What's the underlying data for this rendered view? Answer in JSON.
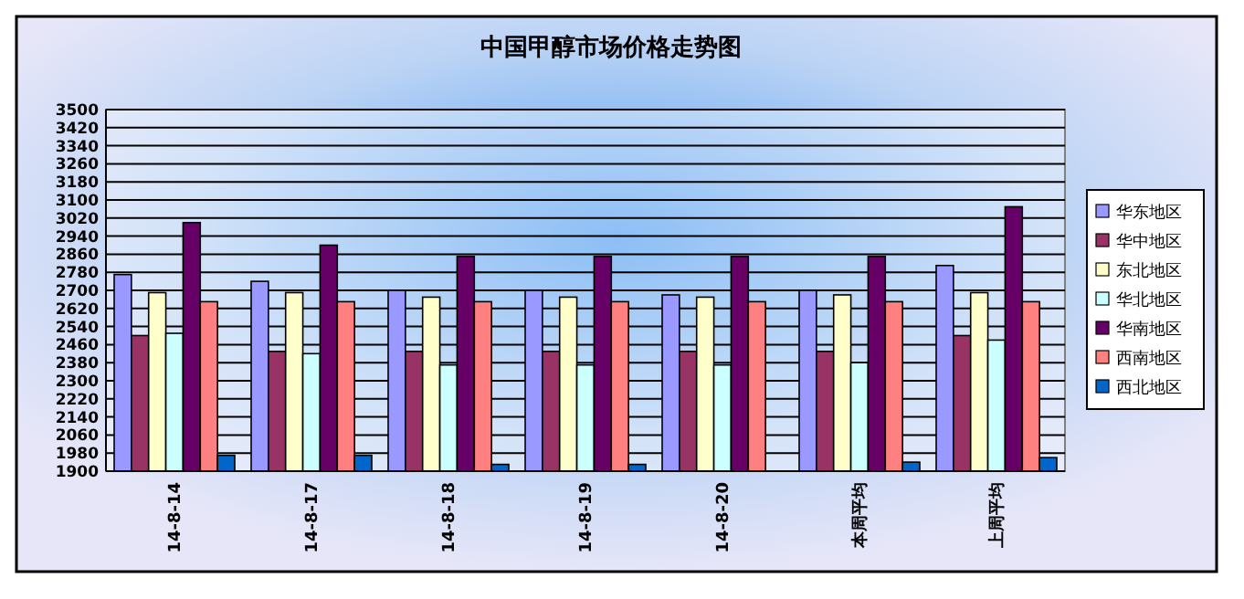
{
  "chart_data": {
    "type": "bar",
    "title": "中国甲醇市场价格走势图",
    "categories": [
      "14-8-14",
      "14-8-17",
      "14-8-18",
      "14-8-19",
      "14-8-20",
      "本周平均",
      "上周平均"
    ],
    "series": [
      {
        "name": "华东地区",
        "color": "#9999ff",
        "values": [
          2770,
          2740,
          2700,
          2700,
          2680,
          2700,
          2810
        ]
      },
      {
        "name": "华中地区",
        "color": "#993366",
        "values": [
          2500,
          2430,
          2430,
          2430,
          2430,
          2430,
          2500
        ]
      },
      {
        "name": "东北地区",
        "color": "#ffffcc",
        "values": [
          2690,
          2690,
          2670,
          2670,
          2670,
          2680,
          2690
        ]
      },
      {
        "name": "华北地区",
        "color": "#ccffff",
        "values": [
          2510,
          2420,
          2370,
          2370,
          2370,
          2380,
          2480
        ]
      },
      {
        "name": "华南地区",
        "color": "#660066",
        "values": [
          3000,
          2900,
          2850,
          2850,
          2850,
          2850,
          3070
        ]
      },
      {
        "name": "西南地区",
        "color": "#ff8080",
        "values": [
          2650,
          2650,
          2650,
          2650,
          2650,
          2650,
          2650
        ]
      },
      {
        "name": "西北地区",
        "color": "#0066cc",
        "values": [
          1970,
          1970,
          1930,
          1930,
          null,
          1940,
          1960
        ]
      }
    ],
    "ylim": [
      1900,
      3500
    ],
    "yticks": [
      1900,
      1980,
      2060,
      2140,
      2220,
      2300,
      2380,
      2460,
      2540,
      2620,
      2700,
      2780,
      2860,
      2940,
      3020,
      3100,
      3180,
      3260,
      3340,
      3420,
      3500
    ],
    "grid": "y",
    "legend": "right"
  }
}
